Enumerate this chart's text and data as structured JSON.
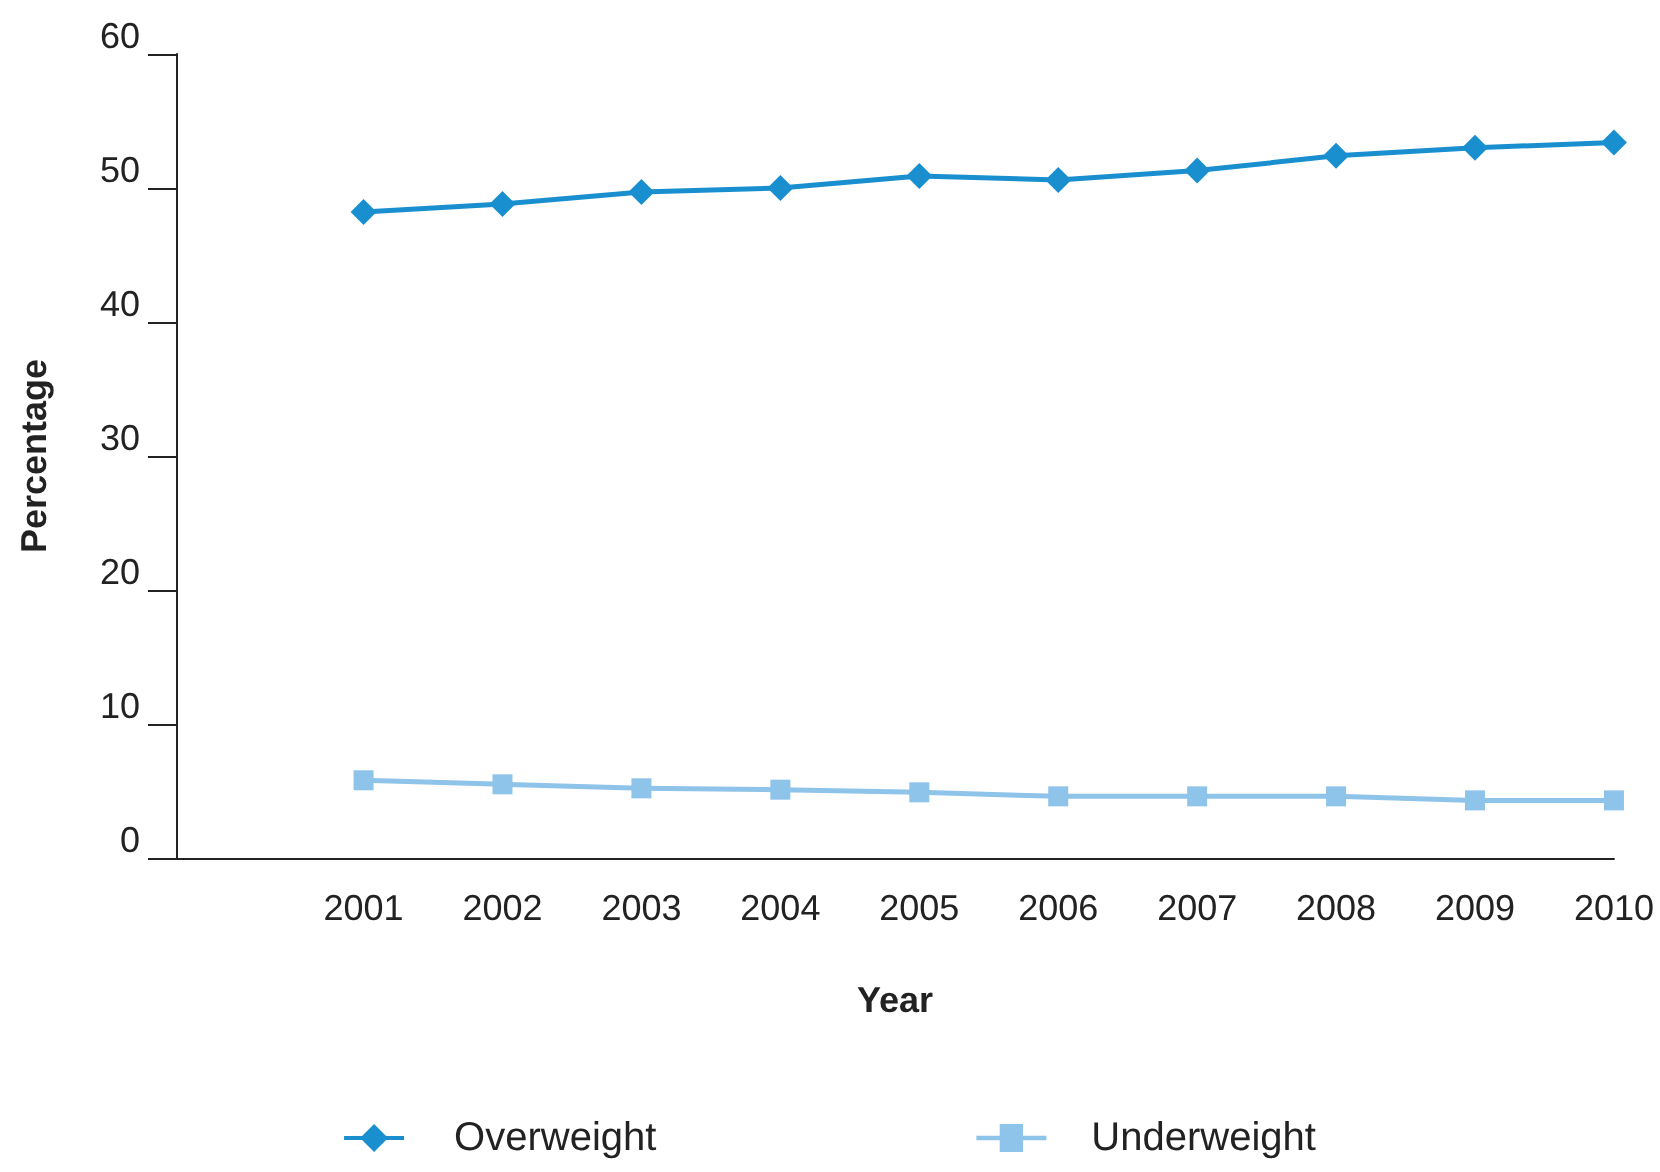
{
  "chart_data": {
    "type": "line",
    "xlabel": "Year",
    "ylabel": "Percentage",
    "x": [
      2001,
      2002,
      2003,
      2004,
      2005,
      2006,
      2007,
      2008,
      2009,
      2010
    ],
    "xlim": [
      1999.65,
      2010
    ],
    "xticks": [
      2001,
      2002,
      2003,
      2004,
      2005,
      2006,
      2007,
      2008,
      2009,
      2010
    ],
    "ylim": [
      0,
      60
    ],
    "yticks": [
      0,
      10,
      20,
      30,
      40,
      50,
      60
    ],
    "series": [
      {
        "name": "Overweight",
        "color": "#1a8fd0",
        "marker": "diamond",
        "values": [
          48.2,
          48.8,
          49.7,
          50.0,
          50.9,
          50.6,
          51.3,
          52.4,
          53.0,
          53.4
        ]
      },
      {
        "name": "Underweight",
        "color": "#8ec3ea",
        "marker": "square",
        "values": [
          5.8,
          5.5,
          5.2,
          5.1,
          4.9,
          4.6,
          4.6,
          4.6,
          4.3,
          4.3
        ]
      }
    ],
    "grid": false,
    "legend": "bottom",
    "line_style": "solid"
  }
}
